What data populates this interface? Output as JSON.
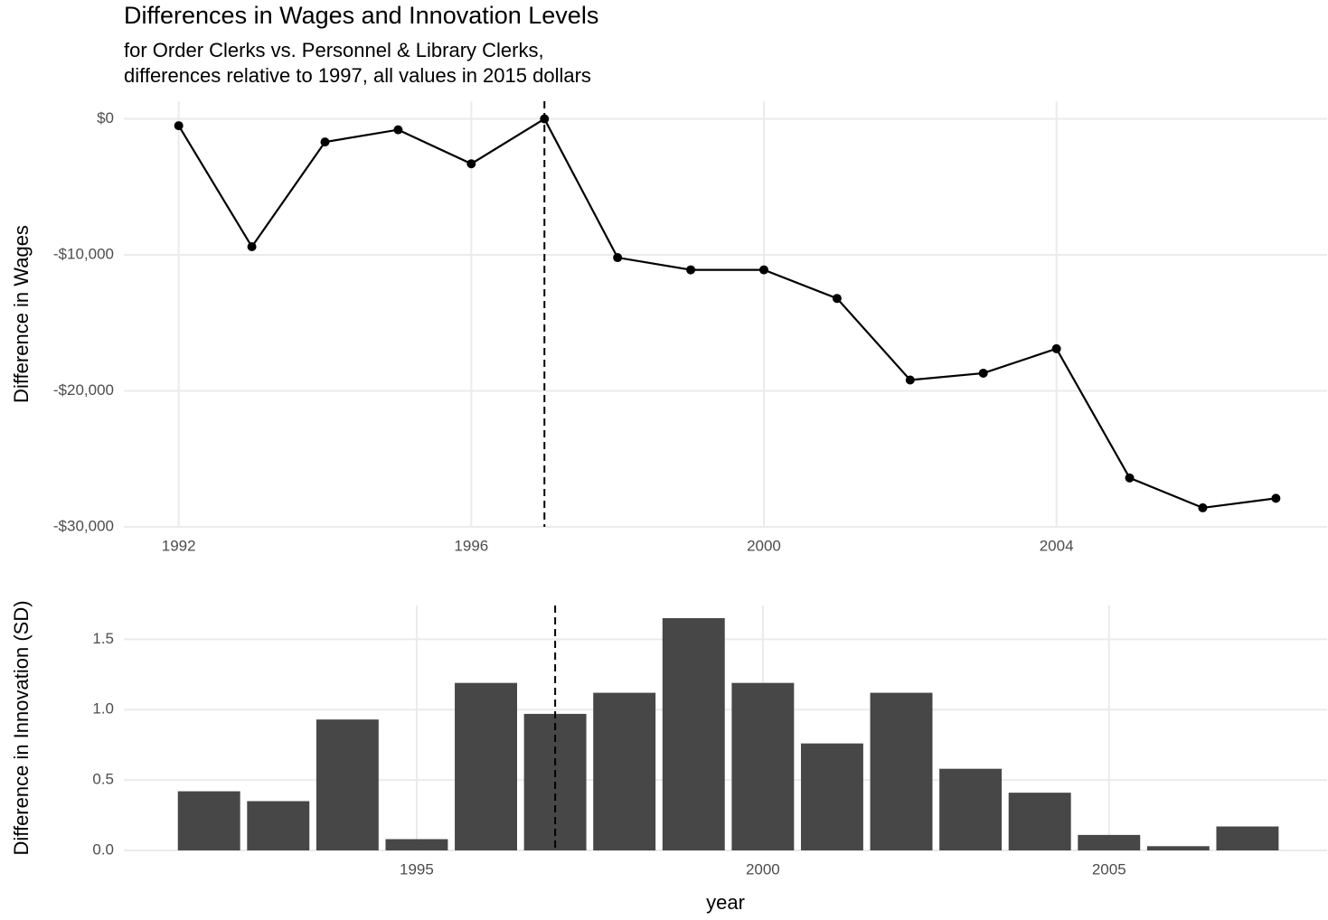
{
  "chart_data": [
    {
      "type": "line",
      "title": "Differences in Wages and Innovation Levels",
      "subtitle": [
        "for Order Clerks vs. Personnel & Library Clerks,",
        "differences relative to 1997, all values in 2015 dollars"
      ],
      "y_label": "Difference in Wages",
      "x": [
        1992,
        1993,
        1994,
        1995,
        1996,
        1997,
        1998,
        1999,
        2000,
        2001,
        2002,
        2003,
        2004,
        2005,
        2006,
        2007
      ],
      "values": [
        -500,
        -9400,
        -1700,
        -800,
        -3300,
        0,
        -10200,
        -11100,
        -11100,
        -13200,
        -19200,
        -18700,
        -16900,
        -26400,
        -28600,
        -27900
      ],
      "color": "#000000",
      "reference_x": 1997,
      "xlim": [
        1991.25,
        2007.7
      ],
      "xticks": [
        1992,
        1996,
        2000,
        2004
      ],
      "ylim": [
        -30000,
        1300
      ],
      "yticks": [
        {
          "value": -30000,
          "label": "-$30,000"
        },
        {
          "value": -20000,
          "label": "-$20,000"
        },
        {
          "value": -10000,
          "label": "-$10,000"
        },
        {
          "value": 0,
          "label": "$0"
        }
      ],
      "grid": true
    },
    {
      "type": "bar",
      "y_label": "Difference in Innovation (SD)",
      "x_label": "year",
      "x": [
        1992,
        1993,
        1994,
        1995,
        1996,
        1997,
        1998,
        1999,
        2000,
        2001,
        2002,
        2003,
        2004,
        2005,
        2006,
        2007
      ],
      "values": [
        0.42,
        0.35,
        0.93,
        0.08,
        1.19,
        0.97,
        1.12,
        1.65,
        1.19,
        0.76,
        1.12,
        0.58,
        0.41,
        0.11,
        0.03,
        0.17
      ],
      "color": "#474747",
      "reference_x": 1997,
      "xlim": [
        1990.77,
        2008.15
      ],
      "xticks": [
        1995,
        2000,
        2005
      ],
      "ylim": [
        0,
        1.74
      ],
      "yticks": [
        {
          "value": 0,
          "label": "0.0"
        },
        0.5,
        {
          "value": 1,
          "label": "1.0"
        },
        1.5
      ],
      "grid": true
    }
  ]
}
